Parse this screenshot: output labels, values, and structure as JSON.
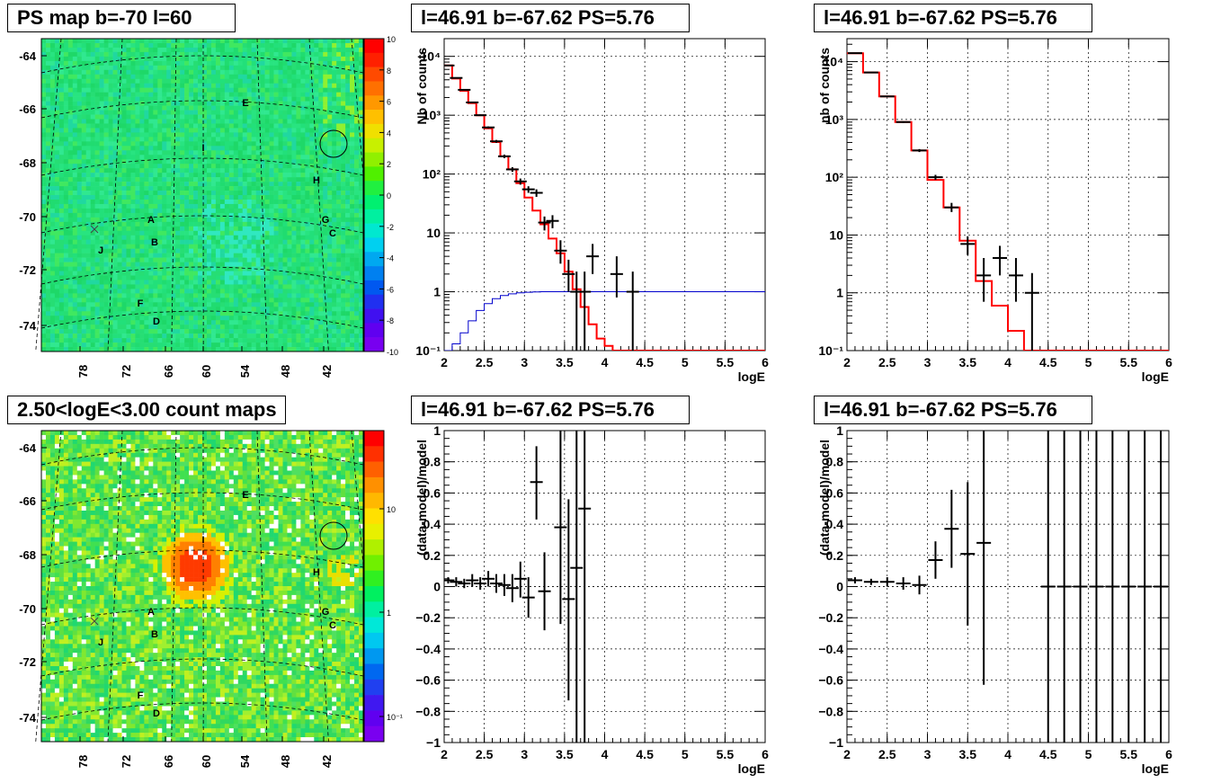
{
  "panels": {
    "map1": {
      "title": "PS map b=-70 l=60",
      "y_ticks": [
        "-64",
        "-66",
        "-68",
        "-70",
        "-72",
        "-74"
      ],
      "x_ticks": [
        "78",
        "72",
        "66",
        "60",
        "54",
        "48",
        "42"
      ],
      "colorbar_ticks": [
        "10",
        "8",
        "6",
        "4",
        "2",
        "0",
        "-2",
        "-4",
        "-6",
        "-8",
        "-10"
      ],
      "source_labels": [
        "E",
        "I",
        "H",
        "A",
        "G",
        "B",
        "C",
        "J",
        "F",
        "D"
      ]
    },
    "map2": {
      "title": "2.50<logE<3.00 count maps",
      "y_ticks": [
        "-64",
        "-66",
        "-68",
        "-70",
        "-72",
        "-74"
      ],
      "x_ticks": [
        "78",
        "72",
        "66",
        "60",
        "54",
        "48",
        "42"
      ],
      "colorbar_ticks": [
        "10",
        "1",
        "10⁻¹"
      ],
      "source_labels": [
        "E",
        "I",
        "H",
        "A",
        "G",
        "B",
        "C",
        "J",
        "F",
        "D"
      ]
    },
    "spec1": {
      "title": "l=46.91 b=-67.62 PS=5.76"
    },
    "spec2": {
      "title": "l=46.91 b=-67.62 PS=5.76"
    },
    "res1": {
      "title": "l=46.91 b=-67.62 PS=5.76"
    },
    "res2": {
      "title": "l=46.91 b=-67.62 PS=5.76"
    }
  },
  "chart_data": [
    {
      "id": "spec1",
      "type": "line",
      "xlabel": "logE",
      "ylabel": "Nb of counts",
      "xlim": [
        2,
        6
      ],
      "ylim": [
        0.1,
        20000
      ],
      "yscale": "log",
      "grid": true,
      "x_ticks": [
        "2",
        "2.5",
        "3",
        "3.5",
        "4",
        "4.5",
        "5",
        "5.5",
        "6"
      ],
      "y_ticks": [
        "10⁻¹",
        "1",
        "10",
        "10²",
        "10³",
        "10⁴"
      ],
      "y_tick_values": [
        0.1,
        1,
        10,
        100,
        1000,
        10000
      ],
      "model_red": [
        [
          2.0,
          7000
        ],
        [
          2.1,
          4200
        ],
        [
          2.2,
          2600
        ],
        [
          2.3,
          1600
        ],
        [
          2.4,
          1000
        ],
        [
          2.5,
          600
        ],
        [
          2.6,
          350
        ],
        [
          2.7,
          200
        ],
        [
          2.8,
          120
        ],
        [
          2.9,
          70
        ],
        [
          3.0,
          40
        ],
        [
          3.1,
          24
        ],
        [
          3.2,
          14
        ],
        [
          3.3,
          8
        ],
        [
          3.4,
          4.5
        ],
        [
          3.5,
          2.2
        ],
        [
          3.6,
          1.1
        ],
        [
          3.7,
          0.55
        ],
        [
          3.8,
          0.28
        ],
        [
          3.9,
          0.16
        ],
        [
          4.0,
          0.12
        ],
        [
          4.1,
          0.1
        ],
        [
          6.0,
          0.1
        ]
      ],
      "model_blue": [
        [
          2.0,
          0.1
        ],
        [
          2.1,
          0.13
        ],
        [
          2.2,
          0.2
        ],
        [
          2.3,
          0.32
        ],
        [
          2.4,
          0.48
        ],
        [
          2.5,
          0.63
        ],
        [
          2.6,
          0.76
        ],
        [
          2.7,
          0.86
        ],
        [
          2.8,
          0.92
        ],
        [
          2.9,
          0.96
        ],
        [
          3.0,
          0.98
        ],
        [
          3.1,
          0.99
        ],
        [
          3.2,
          1.0
        ],
        [
          6.0,
          1.0
        ]
      ],
      "data_points": [
        {
          "x": 2.05,
          "y": 7000,
          "lo": 6900,
          "hi": 7100
        },
        {
          "x": 2.15,
          "y": 4300,
          "lo": 4200,
          "hi": 4400
        },
        {
          "x": 2.25,
          "y": 2700,
          "lo": 2650,
          "hi": 2750
        },
        {
          "x": 2.35,
          "y": 1650,
          "lo": 1610,
          "hi": 1690
        },
        {
          "x": 2.45,
          "y": 1000,
          "lo": 970,
          "hi": 1030
        },
        {
          "x": 2.55,
          "y": 620,
          "lo": 595,
          "hi": 645
        },
        {
          "x": 2.65,
          "y": 360,
          "lo": 340,
          "hi": 380
        },
        {
          "x": 2.75,
          "y": 200,
          "lo": 186,
          "hi": 214
        },
        {
          "x": 2.85,
          "y": 120,
          "lo": 109,
          "hi": 131
        },
        {
          "x": 2.95,
          "y": 75,
          "lo": 66,
          "hi": 84
        },
        {
          "x": 3.05,
          "y": 55,
          "lo": 48,
          "hi": 62
        },
        {
          "x": 3.15,
          "y": 48,
          "lo": 41,
          "hi": 55
        },
        {
          "x": 3.25,
          "y": 15,
          "lo": 11,
          "hi": 19
        },
        {
          "x": 3.35,
          "y": 16,
          "lo": 12,
          "hi": 20
        },
        {
          "x": 3.45,
          "y": 5,
          "lo": 3,
          "hi": 7.5
        },
        {
          "x": 3.55,
          "y": 2,
          "lo": 1,
          "hi": 3.5
        },
        {
          "x": 3.65,
          "y": 1,
          "lo": 0.1,
          "hi": 2.2
        },
        {
          "x": 3.75,
          "y": 1,
          "lo": 0.1,
          "hi": 2.2
        },
        {
          "x": 3.85,
          "y": 4,
          "lo": 2,
          "hi": 6.5
        },
        {
          "x": 4.15,
          "y": 2,
          "lo": 0.8,
          "hi": 4
        },
        {
          "x": 4.35,
          "y": 1,
          "lo": 0.1,
          "hi": 2.2
        }
      ]
    },
    {
      "id": "spec2",
      "type": "line",
      "xlabel": "logE",
      "ylabel": "nb of counts",
      "xlim": [
        2,
        6
      ],
      "ylim": [
        0.1,
        25000
      ],
      "yscale": "log",
      "grid": true,
      "x_ticks": [
        "2",
        "2.5",
        "3",
        "3.5",
        "4",
        "4.5",
        "5",
        "5.5",
        "6"
      ],
      "y_ticks": [
        "10⁻¹",
        "1",
        "10",
        "10²",
        "10³",
        "10⁴"
      ],
      "y_tick_values": [
        0.1,
        1,
        10,
        100,
        1000,
        10000
      ],
      "model_red": [
        [
          2.0,
          14000
        ],
        [
          2.2,
          6500
        ],
        [
          2.4,
          2500
        ],
        [
          2.6,
          900
        ],
        [
          2.8,
          290
        ],
        [
          3.0,
          90
        ],
        [
          3.2,
          30
        ],
        [
          3.4,
          8
        ],
        [
          3.6,
          1.6
        ],
        [
          3.8,
          0.6
        ],
        [
          4.0,
          0.22
        ],
        [
          4.2,
          0.1
        ],
        [
          6.0,
          0.1
        ]
      ],
      "data_points": [
        {
          "x": 2.1,
          "y": 14000,
          "lo": 13800,
          "hi": 14200
        },
        {
          "x": 2.3,
          "y": 6500,
          "lo": 6400,
          "hi": 6600
        },
        {
          "x": 2.5,
          "y": 2500,
          "lo": 2450,
          "hi": 2550
        },
        {
          "x": 2.7,
          "y": 900,
          "lo": 870,
          "hi": 930
        },
        {
          "x": 2.9,
          "y": 290,
          "lo": 273,
          "hi": 307
        },
        {
          "x": 3.1,
          "y": 100,
          "lo": 90,
          "hi": 110
        },
        {
          "x": 3.3,
          "y": 30,
          "lo": 25,
          "hi": 36
        },
        {
          "x": 3.5,
          "y": 7,
          "lo": 4.5,
          "hi": 9.5
        },
        {
          "x": 3.7,
          "y": 2,
          "lo": 0.7,
          "hi": 4
        },
        {
          "x": 3.9,
          "y": 4,
          "lo": 2,
          "hi": 6.5
        },
        {
          "x": 4.1,
          "y": 2,
          "lo": 0.7,
          "hi": 4
        },
        {
          "x": 4.3,
          "y": 1,
          "lo": 0.1,
          "hi": 2.2
        }
      ]
    },
    {
      "id": "res1",
      "type": "scatter",
      "xlabel": "logE",
      "ylabel": "(data-model)/model",
      "xlim": [
        2,
        6
      ],
      "ylim": [
        -1,
        1
      ],
      "grid": true,
      "x_ticks": [
        "2",
        "2.5",
        "3",
        "3.5",
        "4",
        "4.5",
        "5",
        "5.5",
        "6"
      ],
      "y_ticks": [
        "−1",
        "−0.8",
        "−0.6",
        "−0.4",
        "−0.2",
        "0",
        "0.2",
        "0.4",
        "0.6",
        "0.8",
        "1"
      ],
      "y_tick_values": [
        -1,
        -0.8,
        -0.6,
        -0.4,
        -0.2,
        0,
        0.2,
        0.4,
        0.6,
        0.8,
        1
      ],
      "data_points": [
        {
          "x": 2.05,
          "y": 0.04,
          "lo": 0.02,
          "hi": 0.06
        },
        {
          "x": 2.15,
          "y": 0.03,
          "lo": 0.0,
          "hi": 0.06
        },
        {
          "x": 2.25,
          "y": 0.02,
          "lo": -0.01,
          "hi": 0.05
        },
        {
          "x": 2.35,
          "y": 0.04,
          "lo": 0.0,
          "hi": 0.08
        },
        {
          "x": 2.45,
          "y": 0.02,
          "lo": -0.02,
          "hi": 0.06
        },
        {
          "x": 2.55,
          "y": 0.05,
          "lo": 0.0,
          "hi": 0.1
        },
        {
          "x": 2.65,
          "y": 0.02,
          "lo": -0.04,
          "hi": 0.08
        },
        {
          "x": 2.75,
          "y": 0.01,
          "lo": -0.06,
          "hi": 0.08
        },
        {
          "x": 2.85,
          "y": -0.01,
          "lo": -0.1,
          "hi": 0.08
        },
        {
          "x": 2.95,
          "y": 0.05,
          "lo": -0.07,
          "hi": 0.16
        },
        {
          "x": 3.05,
          "y": -0.07,
          "lo": -0.2,
          "hi": 0.06
        },
        {
          "x": 3.15,
          "y": 0.67,
          "lo": 0.43,
          "hi": 0.9
        },
        {
          "x": 3.25,
          "y": -0.03,
          "lo": -0.28,
          "hi": 0.22
        },
        {
          "x": 3.45,
          "y": 0.38,
          "lo": -0.24,
          "hi": 1.0
        },
        {
          "x": 3.55,
          "y": -0.08,
          "lo": -0.73,
          "hi": 0.56
        },
        {
          "x": 3.65,
          "y": 0.12,
          "lo": -1.0,
          "hi": 1.0
        },
        {
          "x": 3.75,
          "y": 0.5,
          "lo": -1.0,
          "hi": 1.0
        }
      ]
    },
    {
      "id": "res2",
      "type": "scatter",
      "xlabel": "logE",
      "ylabel": "(data-model)/model",
      "xlim": [
        2,
        6
      ],
      "ylim": [
        -1,
        1
      ],
      "grid": true,
      "x_ticks": [
        "2",
        "2.5",
        "3",
        "3.5",
        "4",
        "4.5",
        "5",
        "5.5",
        "6"
      ],
      "y_ticks": [
        "−1",
        "−0.8",
        "−0.6",
        "−0.4",
        "−0.2",
        "0",
        "0.2",
        "0.4",
        "0.6",
        "0.8",
        "1"
      ],
      "y_tick_values": [
        -1,
        -0.8,
        -0.6,
        -0.4,
        -0.2,
        0,
        0.2,
        0.4,
        0.6,
        0.8,
        1
      ],
      "data_points": [
        {
          "x": 2.1,
          "y": 0.04,
          "lo": 0.02,
          "hi": 0.06
        },
        {
          "x": 2.3,
          "y": 0.03,
          "lo": 0.01,
          "hi": 0.05
        },
        {
          "x": 2.5,
          "y": 0.03,
          "lo": 0.0,
          "hi": 0.06
        },
        {
          "x": 2.7,
          "y": 0.02,
          "lo": -0.02,
          "hi": 0.06
        },
        {
          "x": 2.9,
          "y": 0.01,
          "lo": -0.05,
          "hi": 0.07
        },
        {
          "x": 3.1,
          "y": 0.17,
          "lo": 0.05,
          "hi": 0.29
        },
        {
          "x": 3.3,
          "y": 0.37,
          "lo": 0.12,
          "hi": 0.62
        },
        {
          "x": 3.5,
          "y": 0.21,
          "lo": -0.25,
          "hi": 0.67
        },
        {
          "x": 3.7,
          "y": 0.28,
          "lo": -0.63,
          "hi": 1.0
        },
        {
          "x": 4.5,
          "y": 0.0,
          "lo": -1.0,
          "hi": 1.0
        },
        {
          "x": 4.7,
          "y": 0.0,
          "lo": -1.0,
          "hi": 1.0
        },
        {
          "x": 4.9,
          "y": 0.0,
          "lo": -1.0,
          "hi": 1.0
        },
        {
          "x": 5.1,
          "y": 0.0,
          "lo": -1.0,
          "hi": 1.0
        },
        {
          "x": 5.3,
          "y": 0.0,
          "lo": -1.0,
          "hi": 1.0
        },
        {
          "x": 5.5,
          "y": 0.0,
          "lo": -1.0,
          "hi": 1.0
        },
        {
          "x": 5.7,
          "y": 0.0,
          "lo": -1.0,
          "hi": 1.0
        },
        {
          "x": 5.9,
          "y": 0.0,
          "lo": -1.0,
          "hi": 1.0
        }
      ]
    }
  ],
  "colors": {
    "model_red": "#ff0000",
    "model_blue": "#0000cc",
    "data": "#000000",
    "grid": "#000000",
    "map_bg": "#22e07a"
  }
}
